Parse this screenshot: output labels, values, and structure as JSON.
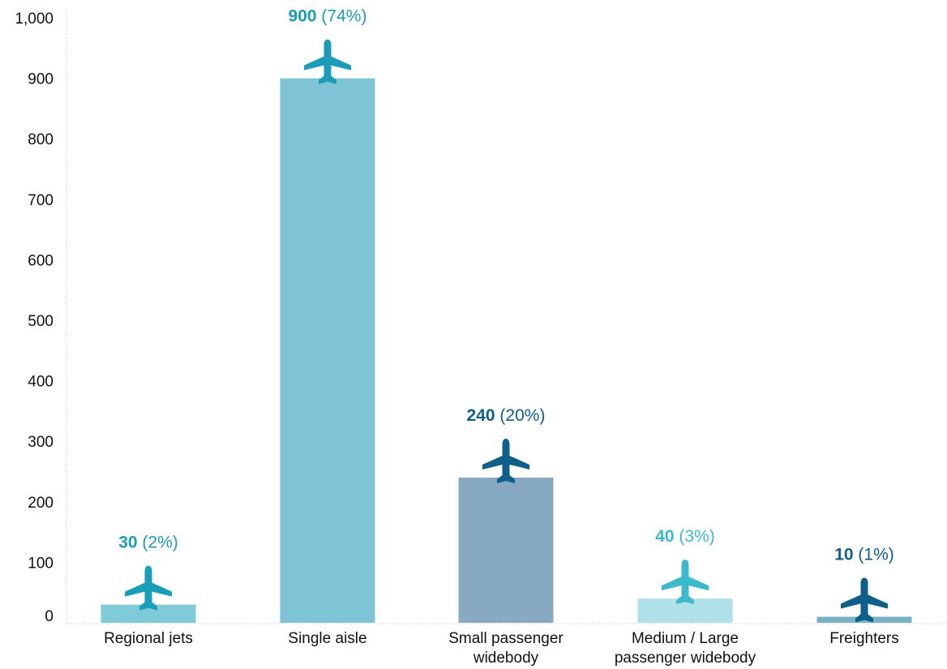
{
  "chart_data": {
    "type": "bar",
    "title": "",
    "xlabel": "",
    "ylabel": "",
    "ylim": [
      0,
      1000
    ],
    "yticks": [
      0,
      100,
      200,
      300,
      400,
      500,
      600,
      700,
      800,
      900,
      1000
    ],
    "ytick_labels": [
      "0",
      "100",
      "200",
      "300",
      "400",
      "500",
      "600",
      "700",
      "800",
      "900",
      "1,000"
    ],
    "grid": false,
    "legend": "none",
    "categories": [
      [
        "Regional jets"
      ],
      [
        "Single aisle"
      ],
      [
        "Small passenger",
        "widebody"
      ],
      [
        "Medium / Large",
        "passenger widebody"
      ],
      [
        "Freighters"
      ]
    ],
    "values": [
      30,
      900,
      240,
      40,
      10
    ],
    "value_labels": [
      "30",
      "900",
      "240",
      "40",
      "10"
    ],
    "percent_labels": [
      "(2%)",
      "(74%)",
      "(20%)",
      "(3%)",
      "(1%)"
    ],
    "bar_colors": [
      "#7ecad6",
      "#7ec4d6",
      "#87aac2",
      "#b0e1e8",
      "#78b2c4"
    ],
    "label_colors": [
      "#1a9db8",
      "#1a9db8",
      "#0e5f8a",
      "#3cb9cc",
      "#0e5f8a"
    ],
    "icon": "airplane-icon"
  }
}
